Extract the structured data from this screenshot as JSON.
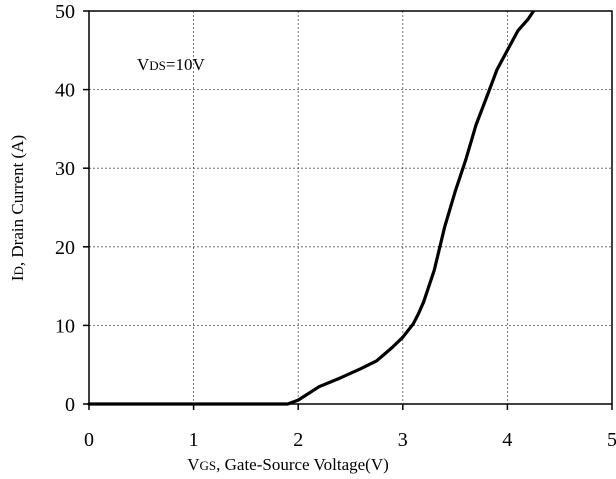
{
  "chart_data": {
    "type": "line",
    "xlabel": {
      "prefix": "V",
      "sub": "GS",
      "rest": ", Gate-Source Voltage(V)"
    },
    "ylabel": {
      "prefix": "I",
      "sub": "D",
      "rest": ", Drain Current (A)"
    },
    "xlim": [
      0,
      5
    ],
    "ylim": [
      0,
      50
    ],
    "xticks": [
      "0",
      "1",
      "2",
      "3",
      "4",
      "5"
    ],
    "yticks": [
      "0",
      "10",
      "20",
      "30",
      "40",
      "50"
    ],
    "grid": "dashed",
    "annotation": {
      "prefix": "V",
      "sub": "DS",
      "rest": "=10V"
    },
    "series": [
      {
        "color": "#000000",
        "x": [
          0,
          1.0,
          1.9,
          2.0,
          2.2,
          2.4,
          2.6,
          2.75,
          2.9,
          3.0,
          3.1,
          3.15,
          3.2,
          3.3,
          3.4,
          3.5,
          3.6,
          3.7,
          3.8,
          3.9,
          4.0,
          4.1,
          4.2,
          4.3
        ],
        "y": [
          0,
          0,
          0,
          0.5,
          2.2,
          3.3,
          4.5,
          5.5,
          7.2,
          8.5,
          10.2,
          11.5,
          13.0,
          17.0,
          22.5,
          27.0,
          31.0,
          35.5,
          39.0,
          42.5,
          45.0,
          47.5,
          49.0,
          51.0
        ]
      }
    ]
  }
}
